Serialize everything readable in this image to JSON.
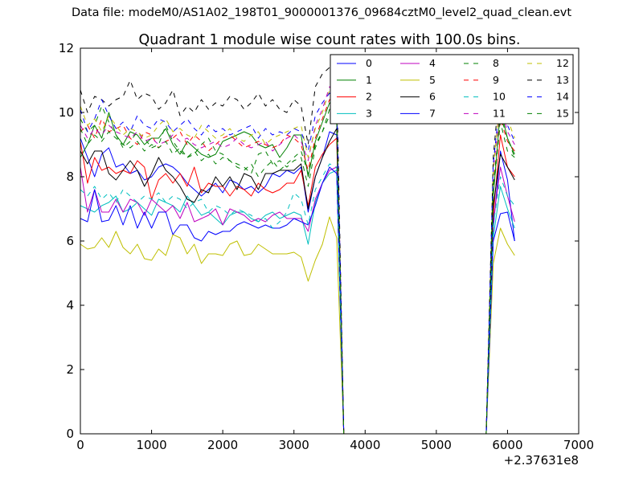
{
  "figure": {
    "supertitle": "Data file: modeM0/AS1A02_198T01_9000001376_09684cztM0_level2_quad_clean.evt"
  },
  "chart_data": {
    "type": "line",
    "title": "Quadrant 1 module wise count rates with 100.0s bins.",
    "xlabel": "",
    "ylabel": "",
    "x_offset_label": "+2.37631e8",
    "xlim": [
      0,
      7000
    ],
    "ylim": [
      0,
      12
    ],
    "xticks": [
      0,
      1000,
      2000,
      3000,
      4000,
      5000,
      6000,
      7000
    ],
    "yticks": [
      0,
      2,
      4,
      6,
      8,
      10,
      12
    ],
    "grid": false,
    "legend_position": "top-right",
    "legend_columns": 4,
    "x": [
      0,
      100,
      200,
      300,
      400,
      500,
      600,
      700,
      800,
      900,
      1000,
      1100,
      1200,
      1300,
      1400,
      1500,
      1600,
      1700,
      1800,
      1900,
      2000,
      2100,
      2200,
      2300,
      2400,
      2500,
      2600,
      2700,
      2800,
      2900,
      3000,
      3100,
      3200,
      3300,
      3400,
      3500,
      3600,
      3700,
      5700,
      5800,
      5900,
      6000,
      6100
    ],
    "series": [
      {
        "name": "0",
        "color": "#0000ff",
        "dash": "solid",
        "values": [
          9.2,
          8.6,
          8.0,
          8.7,
          8.9,
          8.3,
          8.4,
          8.1,
          8.2,
          7.9,
          8.0,
          8.3,
          8.4,
          8.3,
          8.1,
          7.8,
          7.6,
          7.4,
          7.6,
          7.8,
          7.5,
          7.9,
          7.8,
          7.6,
          7.7,
          7.5,
          7.7,
          8.1,
          8.0,
          8.2,
          8.1,
          8.3,
          6.9,
          8.0,
          8.6,
          9.4,
          9.3,
          0,
          0,
          6.4,
          8.8,
          7.9,
          6.0
        ]
      },
      {
        "name": "1",
        "color": "#008000",
        "dash": "solid",
        "values": [
          8.6,
          9.0,
          9.6,
          9.2,
          10.0,
          9.3,
          9.0,
          9.4,
          9.3,
          9.0,
          9.2,
          9.2,
          9.5,
          9.0,
          8.7,
          9.1,
          8.9,
          8.7,
          8.6,
          8.7,
          9.1,
          9.2,
          9.3,
          9.4,
          9.3,
          9.0,
          8.9,
          9.0,
          8.6,
          8.9,
          9.3,
          9.3,
          8.0,
          9.1,
          9.7,
          10.3,
          10.1,
          0,
          0,
          7.4,
          10.1,
          9.2,
          8.7
        ]
      },
      {
        "name": "2",
        "color": "#ff0000",
        "dash": "solid",
        "values": [
          9.1,
          7.8,
          8.6,
          8.2,
          8.3,
          8.1,
          8.2,
          8.1,
          8.5,
          8.3,
          7.3,
          7.9,
          8.1,
          7.8,
          8.1,
          7.7,
          8.3,
          7.5,
          7.8,
          7.7,
          7.7,
          7.4,
          7.7,
          7.6,
          7.4,
          7.8,
          7.6,
          7.5,
          7.6,
          7.8,
          7.8,
          8.2,
          7.1,
          8.3,
          8.7,
          9.0,
          9.2,
          0,
          0,
          6.8,
          9.3,
          8.3,
          8.0
        ]
      },
      {
        "name": "3",
        "color": "#00bfbf",
        "dash": "solid",
        "values": [
          7.1,
          7.0,
          6.9,
          7.1,
          7.2,
          7.4,
          6.9,
          7.0,
          7.2,
          7.0,
          6.8,
          7.3,
          7.2,
          7.1,
          6.9,
          7.4,
          7.1,
          6.8,
          6.9,
          6.7,
          6.5,
          6.8,
          6.9,
          6.9,
          6.7,
          6.6,
          6.8,
          6.9,
          6.7,
          6.8,
          6.9,
          6.8,
          5.9,
          7.2,
          7.8,
          8.1,
          8.2,
          0,
          0,
          6.1,
          7.7,
          7.0,
          6.4
        ]
      },
      {
        "name": "4",
        "color": "#bf00bf",
        "dash": "solid",
        "values": [
          8.3,
          6.9,
          7.6,
          6.9,
          6.9,
          7.3,
          6.9,
          7.3,
          7.2,
          6.8,
          7.3,
          7.1,
          6.9,
          7.1,
          6.7,
          7.2,
          6.6,
          6.7,
          6.8,
          7.0,
          6.5,
          7.0,
          6.9,
          6.8,
          6.6,
          6.7,
          6.6,
          6.8,
          6.9,
          6.7,
          6.7,
          6.7,
          6.3,
          7.3,
          7.8,
          8.2,
          8.3,
          0,
          0,
          6.6,
          8.3,
          7.4,
          6.6
        ]
      },
      {
        "name": "5",
        "color": "#bfbf00",
        "dash": "solid",
        "values": [
          5.9,
          5.75,
          5.8,
          6.1,
          5.8,
          6.3,
          5.8,
          5.6,
          5.9,
          5.45,
          5.4,
          5.75,
          5.55,
          6.2,
          6.1,
          5.6,
          5.9,
          5.3,
          5.6,
          5.6,
          5.55,
          5.9,
          6.0,
          5.55,
          5.6,
          5.9,
          5.75,
          5.6,
          5.6,
          5.6,
          5.65,
          5.5,
          4.75,
          5.4,
          5.9,
          6.75,
          6.1,
          0,
          0,
          5.3,
          6.4,
          5.9,
          5.55
        ]
      },
      {
        "name": "6",
        "color": "#000000",
        "dash": "solid",
        "values": [
          8.8,
          8.4,
          8.8,
          8.8,
          8.1,
          7.9,
          8.2,
          8.5,
          8.2,
          7.7,
          8.1,
          8.6,
          8.2,
          8.0,
          7.7,
          7.3,
          7.2,
          7.6,
          7.5,
          8.0,
          7.7,
          8.0,
          7.6,
          8.1,
          8.0,
          7.6,
          8.1,
          8.1,
          8.2,
          8.2,
          8.2,
          8.4,
          7.0,
          8.0,
          8.6,
          9.1,
          9.5,
          0,
          0,
          7.1,
          8.7,
          8.3,
          7.9
        ]
      },
      {
        "name": "7",
        "color": "#0000ff",
        "dash": "solid",
        "values": [
          6.7,
          6.6,
          7.6,
          6.6,
          6.65,
          7.1,
          6.5,
          7.1,
          6.4,
          6.9,
          6.4,
          6.9,
          6.9,
          6.2,
          6.5,
          6.5,
          6.1,
          6.0,
          6.3,
          6.2,
          6.3,
          6.3,
          6.5,
          6.6,
          6.5,
          6.4,
          6.5,
          6.4,
          6.4,
          6.5,
          6.7,
          6.6,
          6.5,
          7.1,
          7.8,
          8.3,
          8.1,
          0,
          0,
          6.0,
          6.85,
          6.9,
          6.0
        ]
      },
      {
        "name": "8",
        "color": "#008000",
        "dash": "dashed",
        "values": [
          9.8,
          9.4,
          9.6,
          10.2,
          9.7,
          9.3,
          8.9,
          9.1,
          9.4,
          9.2,
          8.9,
          9.0,
          9.6,
          9.1,
          8.8,
          8.6,
          8.7,
          9.0,
          9.2,
          8.8,
          8.7,
          8.5,
          8.4,
          8.3,
          8.1,
          8.7,
          8.8,
          8.4,
          8.5,
          8.3,
          8.5,
          8.6,
          7.7,
          8.9,
          9.4,
          9.9,
          9.7,
          0,
          0,
          7.5,
          9.7,
          8.8,
          8.6
        ]
      },
      {
        "name": "9",
        "color": "#ff0000",
        "dash": "dashed",
        "values": [
          9.4,
          9.6,
          9.2,
          9.8,
          9.4,
          9.5,
          9.6,
          9.2,
          9.0,
          9.4,
          9.3,
          8.9,
          9.1,
          9.2,
          9.4,
          9.0,
          9.3,
          9.1,
          8.8,
          9.0,
          9.2,
          9.3,
          9.1,
          8.9,
          9.0,
          9.1,
          9.0,
          8.9,
          9.0,
          9.3,
          9.2,
          9.0,
          8.2,
          9.2,
          9.8,
          10.4,
          10.2,
          0,
          0,
          7.8,
          9.8,
          9.1,
          8.8
        ]
      },
      {
        "name": "10",
        "color": "#00bfbf",
        "dash": "dashed",
        "values": [
          7.6,
          7.4,
          7.7,
          7.3,
          7.5,
          7.2,
          7.6,
          7.4,
          7.2,
          7.4,
          7.3,
          7.5,
          7.2,
          7.4,
          7.3,
          7.0,
          7.2,
          7.3,
          6.9,
          7.1,
          7.0,
          6.8,
          7.0,
          6.9,
          6.8,
          6.6,
          6.7,
          6.4,
          6.6,
          6.9,
          7.5,
          7.3,
          6.5,
          7.6,
          8.0,
          8.4,
          8.3,
          0,
          0,
          6.5,
          8.0,
          7.4,
          7.1
        ]
      },
      {
        "name": "11",
        "color": "#bf00bf",
        "dash": "dashed",
        "values": [
          9.6,
          9.2,
          9.5,
          9.3,
          9.6,
          9.4,
          9.3,
          9.2,
          9.4,
          9.1,
          9.2,
          9.0,
          9.1,
          9.3,
          9.1,
          9.2,
          9.0,
          8.9,
          9.0,
          9.1,
          8.9,
          9.0,
          9.2,
          9.0,
          8.9,
          9.0,
          9.1,
          8.8,
          9.0,
          9.2,
          9.3,
          9.1,
          8.5,
          9.6,
          10.1,
          10.8,
          10.5,
          0,
          0,
          8.2,
          10.2,
          9.4,
          9.0
        ]
      },
      {
        "name": "12",
        "color": "#bfbf00",
        "dash": "dashed",
        "values": [
          10.2,
          9.6,
          9.8,
          9.4,
          9.9,
          9.6,
          9.3,
          9.5,
          9.4,
          9.2,
          9.3,
          9.6,
          9.8,
          9.4,
          9.5,
          9.3,
          9.2,
          9.6,
          9.4,
          9.2,
          9.3,
          9.5,
          9.2,
          9.1,
          9.3,
          9.4,
          9.0,
          9.2,
          9.3,
          9.4,
          9.5,
          9.6,
          8.6,
          9.5,
          10.0,
          10.7,
          10.3,
          0,
          0,
          8.3,
          10.4,
          9.8,
          9.2
        ]
      },
      {
        "name": "13",
        "color": "#000000",
        "dash": "dashed",
        "values": [
          10.7,
          10.0,
          10.5,
          10.4,
          10.2,
          10.4,
          10.5,
          11.0,
          10.4,
          10.6,
          10.5,
          10.1,
          10.3,
          10.7,
          9.9,
          10.2,
          10.0,
          10.4,
          10.1,
          10.3,
          10.2,
          10.5,
          10.4,
          10.1,
          10.3,
          10.6,
          10.2,
          10.4,
          10.1,
          10.0,
          10.4,
          10.2,
          9.0,
          10.8,
          11.2,
          11.4,
          11.1,
          0,
          0,
          8.6,
          11.1,
          10.5,
          9.7
        ]
      },
      {
        "name": "14",
        "color": "#0000ff",
        "dash": "dashed",
        "values": [
          10.1,
          9.4,
          9.8,
          10.4,
          9.9,
          9.5,
          9.7,
          9.4,
          9.9,
          9.6,
          9.5,
          9.8,
          9.7,
          9.4,
          9.6,
          9.8,
          9.5,
          9.3,
          9.6,
          9.4,
          9.5,
          9.3,
          9.4,
          9.5,
          9.6,
          9.2,
          9.5,
          9.3,
          9.4,
          9.3,
          9.5,
          9.4,
          8.8,
          9.9,
          10.3,
          10.6,
          10.4,
          0,
          0,
          8.4,
          10.5,
          9.6,
          9.1
        ]
      },
      {
        "name": "15",
        "color": "#008000",
        "dash": "dashed",
        "values": [
          9.5,
          9.0,
          9.3,
          9.1,
          9.4,
          9.2,
          9.0,
          8.9,
          9.1,
          8.8,
          9.0,
          8.9,
          9.1,
          8.7,
          8.9,
          8.6,
          8.8,
          8.5,
          8.7,
          8.4,
          8.6,
          8.5,
          8.3,
          8.2,
          8.4,
          8.0,
          8.3,
          8.5,
          8.2,
          8.4,
          8.6,
          8.8,
          8.1,
          9.0,
          9.4,
          10.1,
          9.8,
          0,
          0,
          7.7,
          9.9,
          9.2,
          8.6
        ]
      }
    ]
  }
}
